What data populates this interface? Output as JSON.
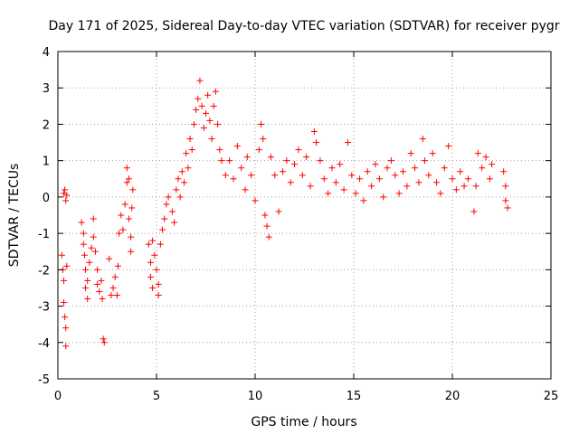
{
  "chart_data": {
    "type": "scatter",
    "title": "Day 171 of 2025, Sidereal Day-to-day VTEC variation (SDTVAR) for receiver pygr",
    "xlabel": "GPS time / hours",
    "ylabel": "SDTVAR / TECUs",
    "xlim": [
      0,
      25
    ],
    "ylim": [
      -5,
      4
    ],
    "xticks": [
      "0",
      "5",
      "10",
      "15",
      "20",
      "25"
    ],
    "yticks": [
      "-5",
      "-4",
      "-3",
      "-2",
      "-1",
      "0",
      "1",
      "2",
      "3",
      "4"
    ],
    "grid": true,
    "marker": "plus",
    "color": "#ff0000",
    "series": [
      {
        "name": "SDTVAR",
        "points": [
          [
            0.2,
            -1.6
          ],
          [
            0.25,
            -2.0
          ],
          [
            0.3,
            -2.3
          ],
          [
            0.3,
            -2.9
          ],
          [
            0.35,
            -3.3
          ],
          [
            0.4,
            -3.6
          ],
          [
            0.4,
            -4.1
          ],
          [
            0.45,
            -1.9
          ],
          [
            0.3,
            0.1
          ],
          [
            0.35,
            0.2
          ],
          [
            0.4,
            -0.1
          ],
          [
            0.45,
            0.05
          ],
          [
            1.2,
            -0.7
          ],
          [
            1.3,
            -1.0
          ],
          [
            1.3,
            -1.3
          ],
          [
            1.35,
            -1.6
          ],
          [
            1.4,
            -2.0
          ],
          [
            1.4,
            -2.5
          ],
          [
            1.5,
            -2.8
          ],
          [
            1.5,
            -2.3
          ],
          [
            1.6,
            -1.8
          ],
          [
            1.7,
            -1.4
          ],
          [
            1.8,
            -1.1
          ],
          [
            1.8,
            -0.6
          ],
          [
            1.9,
            -1.5
          ],
          [
            2.0,
            -2.0
          ],
          [
            2.0,
            -2.4
          ],
          [
            2.1,
            -2.6
          ],
          [
            2.2,
            -2.3
          ],
          [
            2.25,
            -2.8
          ],
          [
            2.3,
            -3.9
          ],
          [
            2.35,
            -4.0
          ],
          [
            2.6,
            -1.7
          ],
          [
            2.7,
            -2.7
          ],
          [
            2.8,
            -2.5
          ],
          [
            2.9,
            -2.2
          ],
          [
            3.0,
            -2.7
          ],
          [
            3.05,
            -1.9
          ],
          [
            3.1,
            -1.0
          ],
          [
            3.2,
            -0.5
          ],
          [
            3.3,
            -0.9
          ],
          [
            3.4,
            -0.2
          ],
          [
            3.5,
            0.4
          ],
          [
            3.5,
            0.8
          ],
          [
            3.6,
            0.5
          ],
          [
            3.6,
            -0.6
          ],
          [
            3.7,
            -1.1
          ],
          [
            3.7,
            -1.5
          ],
          [
            3.75,
            -0.3
          ],
          [
            3.8,
            0.2
          ],
          [
            4.6,
            -1.3
          ],
          [
            4.7,
            -1.8
          ],
          [
            4.7,
            -2.2
          ],
          [
            4.8,
            -2.5
          ],
          [
            4.8,
            -1.2
          ],
          [
            4.9,
            -1.6
          ],
          [
            5.0,
            -2.0
          ],
          [
            5.1,
            -2.4
          ],
          [
            5.1,
            -2.7
          ],
          [
            5.2,
            -1.3
          ],
          [
            5.3,
            -0.9
          ],
          [
            5.4,
            -0.6
          ],
          [
            5.5,
            -0.2
          ],
          [
            5.6,
            0.0
          ],
          [
            5.8,
            -0.4
          ],
          [
            5.9,
            -0.7
          ],
          [
            6.0,
            0.2
          ],
          [
            6.1,
            0.5
          ],
          [
            6.2,
            0.0
          ],
          [
            6.3,
            0.7
          ],
          [
            6.4,
            0.4
          ],
          [
            6.5,
            1.2
          ],
          [
            6.6,
            0.8
          ],
          [
            6.7,
            1.6
          ],
          [
            6.8,
            1.3
          ],
          [
            6.9,
            2.0
          ],
          [
            7.0,
            2.4
          ],
          [
            7.1,
            2.7
          ],
          [
            7.2,
            3.2
          ],
          [
            7.3,
            2.5
          ],
          [
            7.4,
            1.9
          ],
          [
            7.5,
            2.3
          ],
          [
            7.6,
            2.8
          ],
          [
            7.7,
            2.1
          ],
          [
            7.8,
            1.6
          ],
          [
            7.9,
            2.5
          ],
          [
            8.0,
            2.9
          ],
          [
            8.1,
            2.0
          ],
          [
            8.2,
            1.3
          ],
          [
            8.3,
            1.0
          ],
          [
            8.5,
            0.6
          ],
          [
            8.7,
            1.0
          ],
          [
            8.9,
            0.5
          ],
          [
            9.1,
            1.4
          ],
          [
            9.3,
            0.8
          ],
          [
            9.5,
            0.2
          ],
          [
            9.6,
            1.1
          ],
          [
            9.8,
            0.6
          ],
          [
            10.0,
            -0.1
          ],
          [
            10.2,
            1.3
          ],
          [
            10.3,
            2.0
          ],
          [
            10.4,
            1.6
          ],
          [
            10.5,
            -0.5
          ],
          [
            10.6,
            -0.8
          ],
          [
            10.7,
            -1.1
          ],
          [
            10.8,
            1.1
          ],
          [
            11.0,
            0.6
          ],
          [
            11.2,
            -0.4
          ],
          [
            11.4,
            0.7
          ],
          [
            11.6,
            1.0
          ],
          [
            11.8,
            0.4
          ],
          [
            12.0,
            0.9
          ],
          [
            12.2,
            1.3
          ],
          [
            12.4,
            0.6
          ],
          [
            12.6,
            1.1
          ],
          [
            12.8,
            0.3
          ],
          [
            13.0,
            1.8
          ],
          [
            13.1,
            1.5
          ],
          [
            13.3,
            1.0
          ],
          [
            13.5,
            0.5
          ],
          [
            13.7,
            0.1
          ],
          [
            13.9,
            0.8
          ],
          [
            14.1,
            0.4
          ],
          [
            14.3,
            0.9
          ],
          [
            14.5,
            0.2
          ],
          [
            14.7,
            1.5
          ],
          [
            14.9,
            0.6
          ],
          [
            15.1,
            0.1
          ],
          [
            15.3,
            0.5
          ],
          [
            15.5,
            -0.1
          ],
          [
            15.7,
            0.7
          ],
          [
            15.9,
            0.3
          ],
          [
            16.1,
            0.9
          ],
          [
            16.3,
            0.5
          ],
          [
            16.5,
            0.0
          ],
          [
            16.7,
            0.8
          ],
          [
            16.9,
            1.0
          ],
          [
            17.1,
            0.6
          ],
          [
            17.3,
            0.1
          ],
          [
            17.5,
            0.7
          ],
          [
            17.7,
            0.3
          ],
          [
            17.9,
            1.2
          ],
          [
            18.1,
            0.8
          ],
          [
            18.3,
            0.4
          ],
          [
            18.5,
            1.6
          ],
          [
            18.6,
            1.0
          ],
          [
            18.8,
            0.6
          ],
          [
            19.0,
            1.2
          ],
          [
            19.2,
            0.4
          ],
          [
            19.4,
            0.1
          ],
          [
            19.6,
            0.8
          ],
          [
            19.8,
            1.4
          ],
          [
            20.0,
            0.5
          ],
          [
            20.2,
            0.2
          ],
          [
            20.4,
            0.7
          ],
          [
            20.6,
            0.3
          ],
          [
            20.8,
            0.5
          ],
          [
            21.1,
            -0.4
          ],
          [
            21.2,
            0.3
          ],
          [
            21.3,
            1.2
          ],
          [
            21.5,
            0.8
          ],
          [
            21.7,
            1.1
          ],
          [
            21.9,
            0.5
          ],
          [
            22.0,
            0.9
          ],
          [
            22.6,
            0.7
          ],
          [
            22.7,
            0.3
          ],
          [
            22.7,
            -0.1
          ],
          [
            22.8,
            -0.3
          ]
        ]
      }
    ]
  }
}
